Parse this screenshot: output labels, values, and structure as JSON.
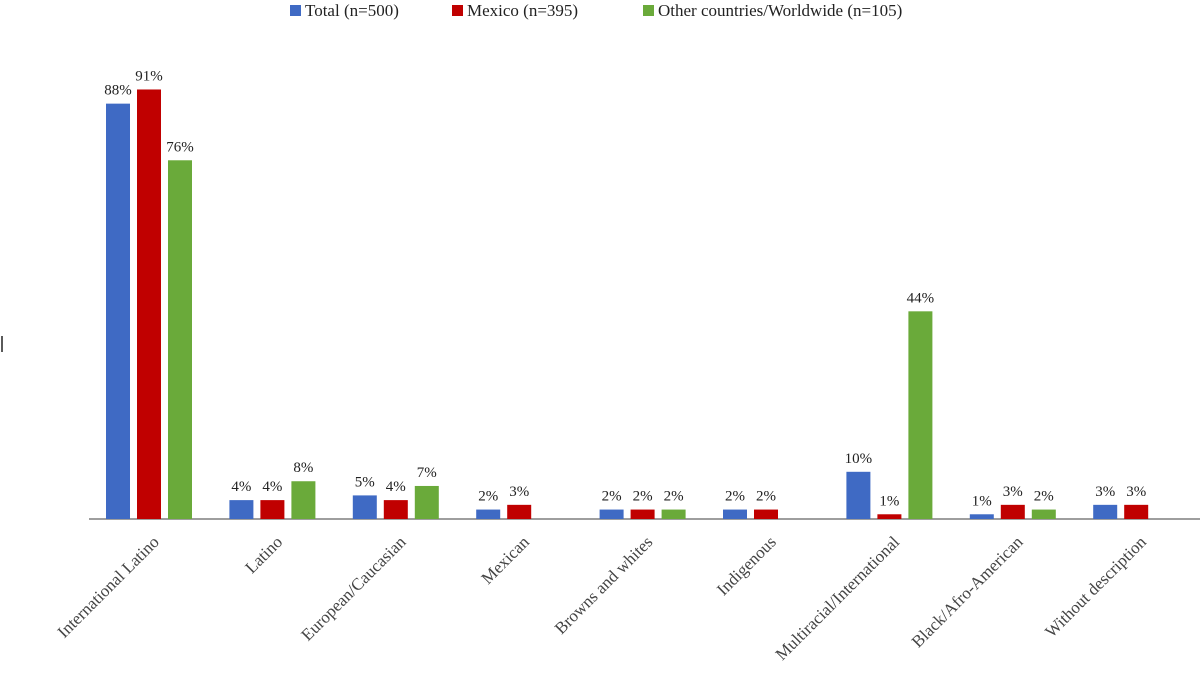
{
  "chart_data": {
    "type": "bar",
    "categories": [
      "International Latino",
      "Latino",
      "European/Caucasian",
      "Mexican",
      "Browns and whites",
      "Indigenous",
      "Multiracial/International",
      "Black/Afro-American",
      "Without description"
    ],
    "series": [
      {
        "name": "Total (n=500)",
        "color": "#3F6AC4",
        "values": [
          88,
          4,
          5,
          2,
          2,
          2,
          10,
          1,
          3
        ],
        "labels": [
          "88%",
          "4%",
          "5%",
          "2%",
          "2%",
          "2%",
          "10%",
          "1%",
          "3%"
        ]
      },
      {
        "name": "Mexico (n=395)",
        "color": "#C00000",
        "values": [
          91,
          4,
          4,
          3,
          2,
          2,
          1,
          3,
          3
        ],
        "labels": [
          "91%",
          "4%",
          "4%",
          "3%",
          "2%",
          "2%",
          "1%",
          "3%",
          "3%"
        ]
      },
      {
        "name": "Other countries/Worldwide (n=105)",
        "color": "#6AAA3A",
        "values": [
          76,
          8,
          7,
          null,
          2,
          null,
          44,
          2,
          null
        ],
        "labels": [
          "76%",
          "8%",
          "7%",
          null,
          "2%",
          null,
          "44%",
          "2%",
          null
        ]
      }
    ],
    "legend_position": "top-center",
    "grid": false
  }
}
